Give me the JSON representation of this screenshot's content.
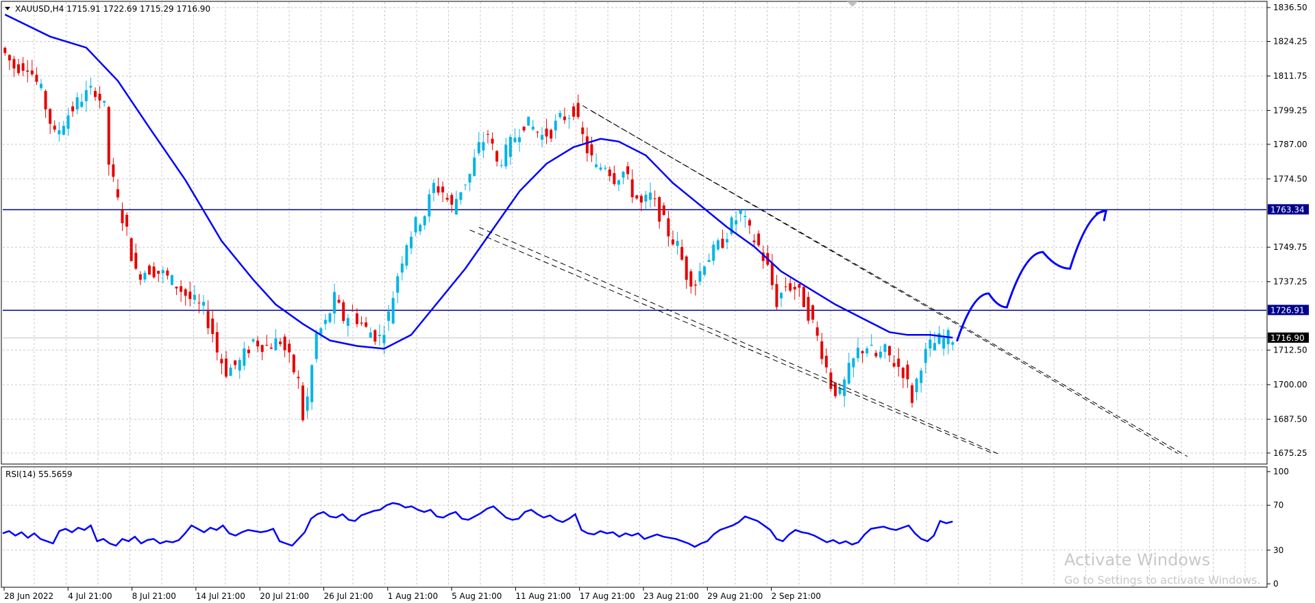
{
  "header": {
    "symbol_text": "XAUUSD,H4  1715.91 1722.69 1715.29 1716.90"
  },
  "rsi_header": {
    "text": "RSI(14) 55.5659"
  },
  "watermark": {
    "line1": "Activate Windows",
    "line2": "Go to Settings to activate Windows."
  },
  "colors": {
    "bull": "#00b4e6",
    "bear": "#e60000",
    "ma": "#0000ff",
    "level": "#00008b",
    "grid": "#c8c8c8",
    "price_tag_bg": "#000000"
  },
  "chart_data": [
    {
      "type": "candlestick",
      "symbol": "XAUUSD",
      "timeframe": "H4",
      "ohlc_last": {
        "open": 1715.91,
        "high": 1722.69,
        "low": 1715.29,
        "close": 1716.9
      },
      "y_ticks": [
        1836.5,
        1824.25,
        1811.75,
        1799.25,
        1787.0,
        1774.5,
        1749.75,
        1737.25,
        1712.5,
        1700.0,
        1687.5,
        1675.25
      ],
      "ylim": [
        1671.5,
        1838.5
      ],
      "x_ticks": [
        "28 Jun 2022",
        "4 Jul 21:00",
        "8 Jul 21:00",
        "14 Jul 21:00",
        "20 Jul 21:00",
        "26 Jul 21:00",
        "1 Aug 21:00",
        "5 Aug 21:00",
        "11 Aug 21:00",
        "17 Aug 21:00",
        "23 Aug 21:00",
        "29 Aug 21:00",
        "2 Sep 21:00"
      ],
      "levels": [
        {
          "value": 1763.34,
          "label": "1763.34"
        },
        {
          "value": 1726.91,
          "label": "1726.91"
        }
      ],
      "current_price": {
        "value": 1716.9,
        "label": "1716.90"
      },
      "price_path": [
        [
          0,
          1822
        ],
        [
          3,
          1815
        ],
        [
          6,
          1816
        ],
        [
          9,
          1806
        ],
        [
          12,
          1790
        ],
        [
          15,
          1798
        ],
        [
          18,
          1804
        ],
        [
          21,
          1807
        ],
        [
          23,
          1800
        ],
        [
          24,
          1780
        ],
        [
          26,
          1766
        ],
        [
          28,
          1755
        ],
        [
          30,
          1740
        ],
        [
          33,
          1742
        ],
        [
          36,
          1740
        ],
        [
          39,
          1736
        ],
        [
          42,
          1731
        ],
        [
          45,
          1727
        ],
        [
          47,
          1719
        ],
        [
          48,
          1712
        ],
        [
          50,
          1705
        ],
        [
          53,
          1708
        ],
        [
          56,
          1716
        ],
        [
          59,
          1714
        ],
        [
          62,
          1716
        ],
        [
          64,
          1709
        ],
        [
          66,
          1701
        ],
        [
          67,
          1688
        ],
        [
          68,
          1695
        ],
        [
          70,
          1718
        ],
        [
          72,
          1722
        ],
        [
          74,
          1731
        ],
        [
          76,
          1724
        ],
        [
          78,
          1726
        ],
        [
          81,
          1720
        ],
        [
          84,
          1717
        ],
        [
          86,
          1725
        ],
        [
          88,
          1740
        ],
        [
          90,
          1752
        ],
        [
          92,
          1758
        ],
        [
          94,
          1762
        ],
        [
          96,
          1772
        ],
        [
          98,
          1770
        ],
        [
          100,
          1764
        ],
        [
          102,
          1771
        ],
        [
          104,
          1776
        ],
        [
          106,
          1786
        ],
        [
          108,
          1791
        ],
        [
          110,
          1780
        ],
        [
          112,
          1784
        ],
        [
          114,
          1790
        ],
        [
          116,
          1795
        ],
        [
          118,
          1793
        ],
        [
          120,
          1790
        ],
        [
          122,
          1792
        ],
        [
          124,
          1796
        ],
        [
          126,
          1798
        ],
        [
          127,
          1800
        ],
        [
          128,
          1794
        ],
        [
          130,
          1785
        ],
        [
          132,
          1778
        ],
        [
          134,
          1780
        ],
        [
          136,
          1775
        ],
        [
          138,
          1777
        ],
        [
          140,
          1770
        ],
        [
          142,
          1765
        ],
        [
          144,
          1768
        ],
        [
          146,
          1762
        ],
        [
          148,
          1755
        ],
        [
          150,
          1750
        ],
        [
          152,
          1740
        ],
        [
          154,
          1737
        ],
        [
          156,
          1745
        ],
        [
          158,
          1748
        ],
        [
          160,
          1752
        ],
        [
          162,
          1758
        ],
        [
          164,
          1762
        ],
        [
          166,
          1755
        ],
        [
          168,
          1750
        ],
        [
          170,
          1742
        ],
        [
          172,
          1730
        ],
        [
          174,
          1736
        ],
        [
          176,
          1735
        ],
        [
          178,
          1730
        ],
        [
          180,
          1722
        ],
        [
          182,
          1712
        ],
        [
          184,
          1700
        ],
        [
          186,
          1696
        ],
        [
          188,
          1705
        ],
        [
          190,
          1712
        ],
        [
          192,
          1714
        ],
        [
          194,
          1710
        ],
        [
          196,
          1712
        ],
        [
          198,
          1708
        ],
        [
          200,
          1705
        ],
        [
          202,
          1695
        ],
        [
          204,
          1708
        ],
        [
          206,
          1714
        ],
        [
          208,
          1716
        ],
        [
          210,
          1717
        ]
      ],
      "ma_path": [
        [
          0,
          1834
        ],
        [
          10,
          1826
        ],
        [
          18,
          1822
        ],
        [
          25,
          1810
        ],
        [
          32,
          1793
        ],
        [
          40,
          1774
        ],
        [
          48,
          1752
        ],
        [
          55,
          1738
        ],
        [
          60,
          1729
        ],
        [
          66,
          1722
        ],
        [
          72,
          1716
        ],
        [
          78,
          1714
        ],
        [
          84,
          1713
        ],
        [
          90,
          1718
        ],
        [
          96,
          1730
        ],
        [
          102,
          1742
        ],
        [
          108,
          1756
        ],
        [
          114,
          1770
        ],
        [
          120,
          1780
        ],
        [
          126,
          1786
        ],
        [
          132,
          1789
        ],
        [
          136,
          1788
        ],
        [
          142,
          1783
        ],
        [
          148,
          1773
        ],
        [
          154,
          1765
        ],
        [
          160,
          1757
        ],
        [
          166,
          1750
        ],
        [
          172,
          1741
        ],
        [
          178,
          1735
        ],
        [
          184,
          1729
        ],
        [
          190,
          1724
        ],
        [
          196,
          1719
        ],
        [
          200,
          1718
        ],
        [
          205,
          1718
        ],
        [
          210,
          1717
        ]
      ],
      "projection_path": [
        [
          211,
          1716
        ],
        [
          218,
          1733
        ],
        [
          222,
          1728
        ],
        [
          230,
          1748
        ],
        [
          236,
          1742
        ],
        [
          244,
          1763
        ]
      ],
      "channel_upper": [
        [
          [
            128,
            1801
          ],
          [
            260,
            1675
          ]
        ],
        [
          [
            130,
            1799
          ],
          [
            262,
            1674
          ]
        ]
      ],
      "channel_lower": [
        [
          [
            103,
            1756
          ],
          [
            219,
            1675
          ]
        ],
        [
          [
            105,
            1757
          ],
          [
            220,
            1675
          ]
        ]
      ],
      "x_bars": 280
    },
    {
      "type": "line",
      "title": "RSI(14)",
      "value": 55.5659,
      "y_ticks": [
        100,
        70,
        30,
        0
      ],
      "ylim": [
        0,
        100
      ],
      "values": [
        45,
        47,
        43,
        46,
        41,
        45,
        40,
        38,
        36,
        47,
        49,
        46,
        50,
        48,
        52,
        38,
        40,
        36,
        34,
        40,
        38,
        42,
        36,
        39,
        40,
        36,
        38,
        37,
        39,
        45,
        52,
        49,
        46,
        50,
        48,
        52,
        45,
        43,
        46,
        48,
        47,
        46,
        47,
        49,
        38,
        36,
        34,
        40,
        46,
        58,
        62,
        64,
        60,
        59,
        62,
        57,
        56,
        61,
        63,
        65,
        66,
        70,
        72,
        71,
        68,
        69,
        66,
        64,
        66,
        60,
        59,
        62,
        64,
        58,
        57,
        60,
        63,
        67,
        69,
        64,
        59,
        57,
        58,
        64,
        66,
        62,
        59,
        61,
        57,
        55,
        58,
        62,
        48,
        45,
        44,
        47,
        45,
        46,
        42,
        45,
        43,
        45,
        40,
        42,
        44,
        42,
        41,
        40,
        38,
        36,
        33,
        36,
        38,
        44,
        48,
        50,
        52,
        55,
        60,
        58,
        56,
        52,
        48,
        40,
        38,
        44,
        48,
        46,
        45,
        43,
        40,
        37,
        39,
        36,
        38,
        35,
        37,
        44,
        49,
        50,
        51,
        49,
        48,
        50,
        52,
        45,
        40,
        38,
        43,
        56,
        54,
        55.5659
      ]
    }
  ]
}
